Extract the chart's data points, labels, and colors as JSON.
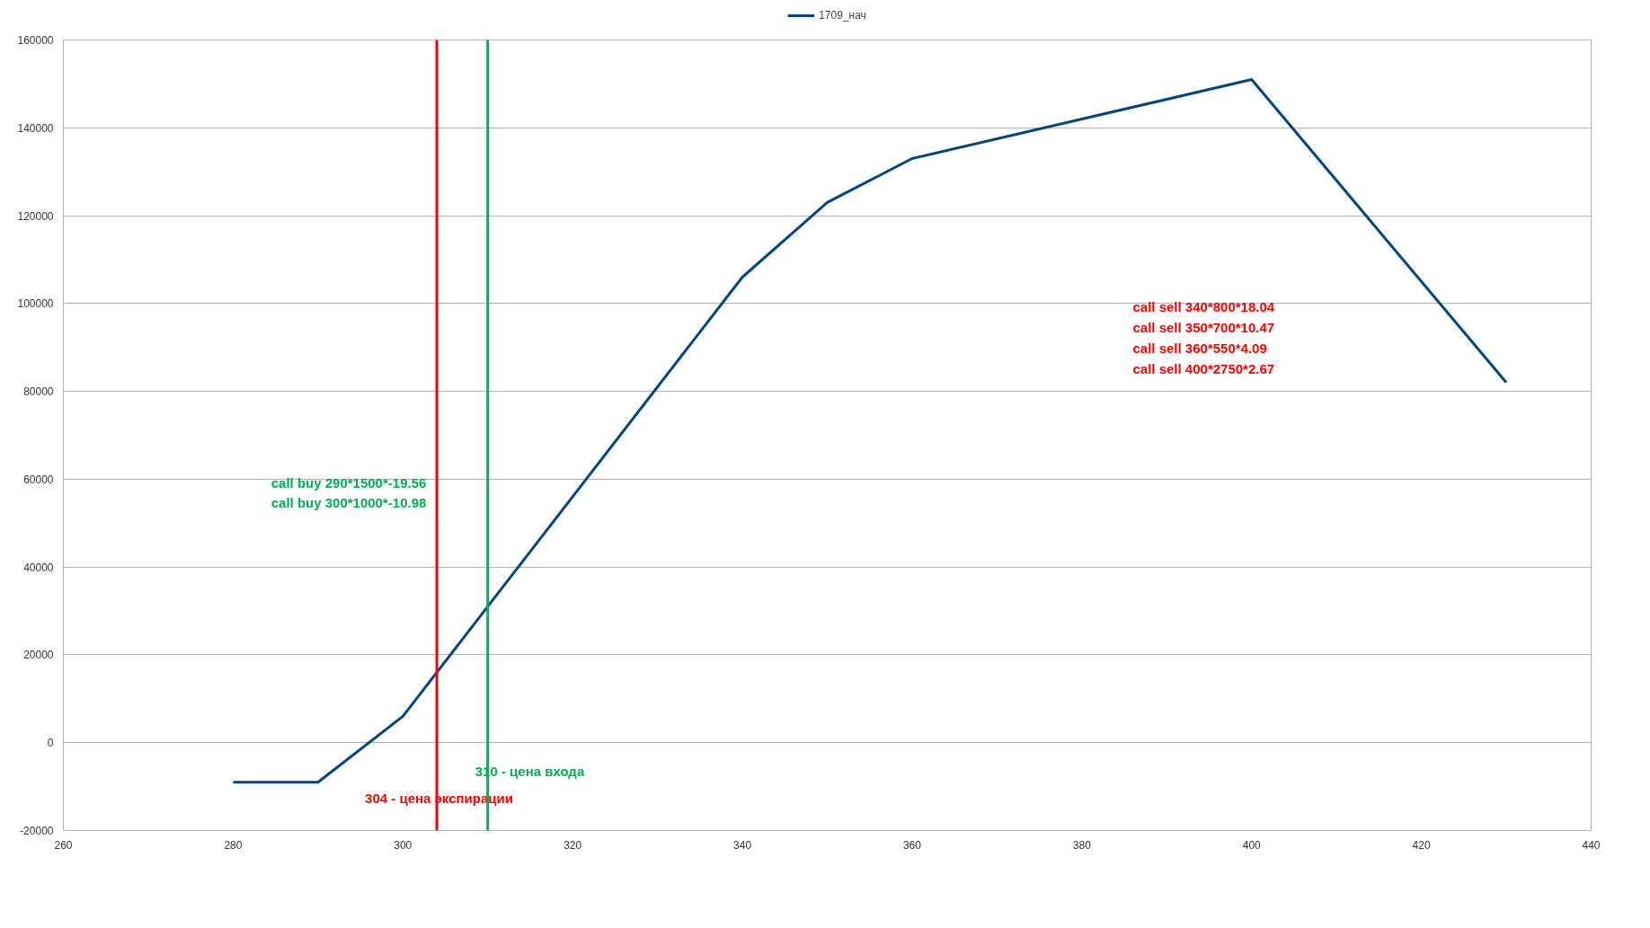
{
  "chart_data": {
    "type": "line",
    "x": [
      280,
      290,
      300,
      310,
      340,
      350,
      360,
      400,
      430
    ],
    "series": [
      {
        "name": "1709_нач",
        "color": "#004586",
        "values": [
          -9000,
          -9000,
          6000,
          31000,
          106000,
          123000,
          133000,
          151000,
          82000
        ]
      }
    ],
    "xlim": [
      260,
      440
    ],
    "xticks": [
      260,
      280,
      300,
      320,
      340,
      360,
      380,
      400,
      420,
      440
    ],
    "ylim": [
      -20000,
      160000
    ],
    "yticks": [
      -20000,
      0,
      20000,
      40000,
      60000,
      80000,
      100000,
      120000,
      140000,
      160000
    ],
    "grid": "y",
    "legend": "top",
    "marker": "none",
    "line_style": "solid",
    "ref_lines": [
      {
        "axis": "x",
        "value": 304,
        "label": "304 - цена экспирации",
        "color": "#ff0000"
      },
      {
        "axis": "x",
        "value": 310,
        "label": "310 - цена входа",
        "color": "#00b050"
      }
    ],
    "annotations": [
      "call buy 290*1500*-19.56\ncall buy 300*1000*-10.98",
      "call sell 340*800*18.04\ncall sell 350*700*10.47\ncall sell 360*550*4.09\ncall sell 400*2750*2.67"
    ]
  }
}
